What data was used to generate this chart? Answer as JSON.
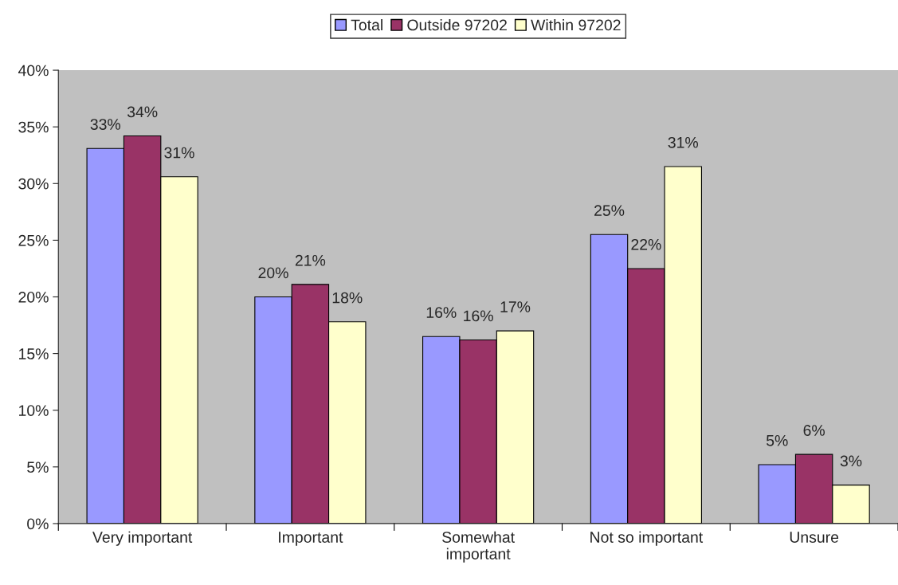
{
  "chart_data": {
    "type": "bar",
    "categories": [
      "Very important",
      "Important",
      "Somewhat\nimportant",
      "Not so important",
      "Unsure"
    ],
    "series": [
      {
        "name": "Total",
        "color": "#9999ff",
        "values": [
          33.1,
          20.0,
          16.5,
          25.5,
          5.2
        ],
        "value_labels": [
          "33%",
          "20%",
          "16%",
          "25%",
          "5%"
        ]
      },
      {
        "name": "Outside 97202",
        "color": "#993366",
        "values": [
          34.2,
          21.1,
          16.2,
          22.5,
          6.1
        ],
        "value_labels": [
          "34%",
          "21%",
          "16%",
          "22%",
          "6%"
        ]
      },
      {
        "name": "Within 97202",
        "color": "#ffffcc",
        "values": [
          30.6,
          17.8,
          17.0,
          31.5,
          3.4
        ],
        "value_labels": [
          "31%",
          "18%",
          "17%",
          "31%",
          "3%"
        ]
      }
    ],
    "ylim": [
      0,
      40
    ],
    "yticks": [
      {
        "value": 0,
        "label": "0%"
      },
      {
        "value": 5,
        "label": "5%"
      },
      {
        "value": 10,
        "label": "10%"
      },
      {
        "value": 15,
        "label": "15%"
      },
      {
        "value": 20,
        "label": "20%"
      },
      {
        "value": 25,
        "label": "25%"
      },
      {
        "value": 30,
        "label": "30%"
      },
      {
        "value": 35,
        "label": "35%"
      },
      {
        "value": 40,
        "label": "40%"
      }
    ],
    "grid": false,
    "legend": "top"
  }
}
